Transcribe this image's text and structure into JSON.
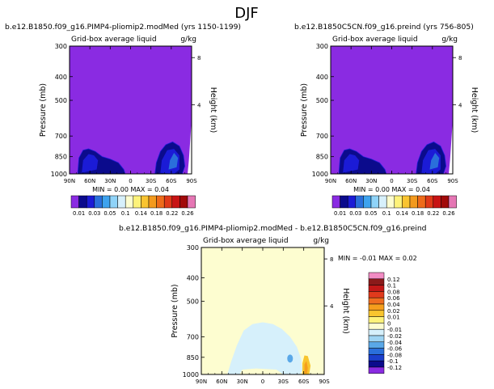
{
  "figure": {
    "title": "DJF"
  },
  "chart_data": [
    {
      "type": "heatmap",
      "title": "b.e12.B1850.f09_g16.PIMP4-pliomip2.modMed (yrs 1150-1199)",
      "subtitle": "Grid-box average liquid",
      "units": "g/kg",
      "xlabel": "",
      "ylabel": "Pressure (mb)",
      "ylabel_right": "Height (km)",
      "x_ticks": [
        "90N",
        "60N",
        "30N",
        "0",
        "30S",
        "60S",
        "90S"
      ],
      "y_ticks": [
        "300",
        "400",
        "500",
        "700",
        "850",
        "1000"
      ],
      "height_ticks": [
        "8",
        "4"
      ],
      "xlim": [
        90,
        -90
      ],
      "ylim": [
        1000,
        300
      ],
      "stats": "MIN =   0.00   MAX =   0.04",
      "background_level": "0.01",
      "features": [
        {
          "label": "southern high-latitude low cloud",
          "lat_center": -62,
          "p_top": 770,
          "level": "0.05"
        },
        {
          "label": "northern high-latitude low cloud",
          "lat_center": 58,
          "p_top": 800,
          "level": "0.03"
        }
      ]
    },
    {
      "type": "heatmap",
      "title": "b.e12.B1850C5CN.f09_g16.preind (yrs 756-805)",
      "subtitle": "Grid-box average liquid",
      "units": "g/kg",
      "xlabel": "",
      "ylabel": "Pressure (mb)",
      "ylabel_right": "Height (km)",
      "x_ticks": [
        "90N",
        "60N",
        "30N",
        "0",
        "30S",
        "60S",
        "90S"
      ],
      "y_ticks": [
        "300",
        "400",
        "500",
        "700",
        "850",
        "1000"
      ],
      "height_ticks": [
        "8",
        "4"
      ],
      "xlim": [
        90,
        -90
      ],
      "ylim": [
        1000,
        300
      ],
      "stats": "MIN =   0.00   MAX =   0.04",
      "background_level": "0.01",
      "features": [
        {
          "label": "southern high-latitude low cloud",
          "lat_center": -62,
          "p_top": 770,
          "level": "0.05"
        },
        {
          "label": "northern high-latitude low cloud",
          "lat_center": 58,
          "p_top": 800,
          "level": "0.03"
        }
      ]
    },
    {
      "type": "heatmap",
      "title": "b.e12.B1850.f09_g16.PIMP4-pliomip2.modMed - b.e12.B1850C5CN.f09_g16.preind",
      "subtitle": "Grid-box average liquid",
      "units": "g/kg",
      "xlabel": "",
      "ylabel": "Pressure (mb)",
      "ylabel_right": "Height (km)",
      "x_ticks": [
        "90N",
        "60N",
        "30N",
        "0",
        "30S",
        "60S",
        "90S"
      ],
      "y_ticks": [
        "300",
        "400",
        "500",
        "700",
        "850",
        "1000"
      ],
      "height_ticks": [
        "8",
        "4"
      ],
      "xlim": [
        90,
        -90
      ],
      "ylim": [
        1000,
        300
      ],
      "stats": "MIN =  -0.01   MAX =   0.02",
      "background_level": "0",
      "features": [
        {
          "label": "tropical/subtropical negative anomaly",
          "lat_range": [
            52,
            -58
          ],
          "p_top": 620,
          "level": "-0.01"
        },
        {
          "label": "southern small negative spot",
          "lat_center": -40,
          "p_center": 860,
          "level": "-0.02"
        },
        {
          "label": "southern high-latitude positive anomaly",
          "lat_center": -62,
          "p_center": 880,
          "level": "0.02"
        }
      ]
    }
  ],
  "colorbars": {
    "abs": {
      "labels": [
        "0.01",
        "0.03",
        "0.05",
        "0.1",
        "0.14",
        "0.18",
        "0.22",
        "0.26"
      ],
      "colors": [
        "#8a2be2",
        "#0b0b8c",
        "#1b1bd6",
        "#2a6fdb",
        "#3ea3ee",
        "#8fd3f8",
        "#d7f0fb",
        "#fdfdd0",
        "#fdf27a",
        "#f9c431",
        "#f39a1e",
        "#ee6b1a",
        "#e03a18",
        "#c81414",
        "#a10a0a",
        "#e576b4"
      ]
    },
    "diff": {
      "labels": [
        "0.12",
        "0.1",
        "0.08",
        "0.06",
        "0.04",
        "0.02",
        "0.01",
        "0",
        "-0.01",
        "-0.02",
        "-0.04",
        "-0.06",
        "-0.08",
        "-0.1",
        "-0.12"
      ],
      "colors": [
        "#f28cc4",
        "#8b1a1a",
        "#c31818",
        "#e03a1c",
        "#ee6d20",
        "#f59e1d",
        "#f8c52e",
        "#fdf27a",
        "#fdfdd0",
        "#d6f0fb",
        "#9ed4f3",
        "#5aa8e8",
        "#2a6fdb",
        "#1b3fcc",
        "#0b0b8c",
        "#8a2be2"
      ]
    }
  }
}
